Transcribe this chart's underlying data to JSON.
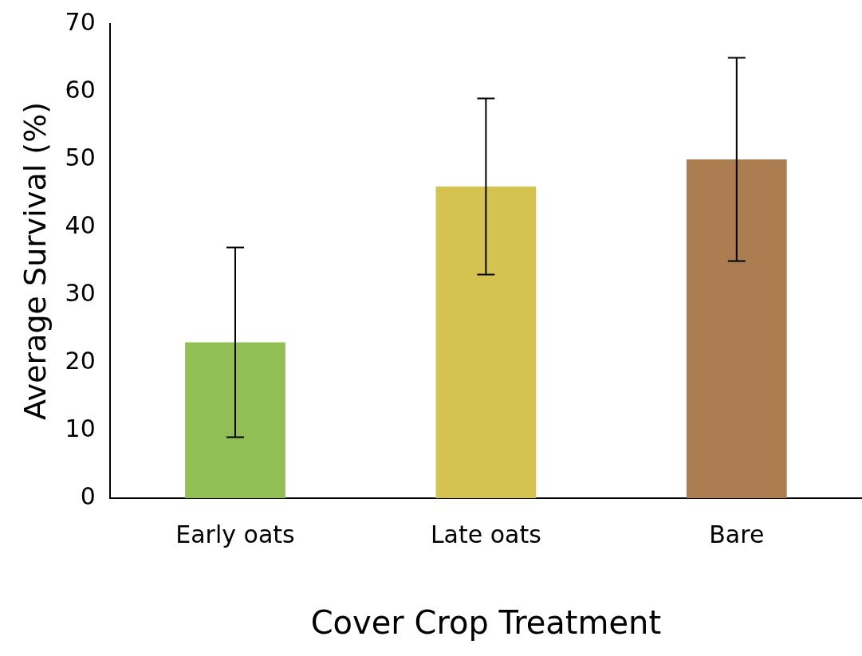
{
  "chart_data": {
    "type": "bar",
    "xlabel": "Cover Crop Treatment",
    "ylabel": "Average Survival (%)",
    "categories": [
      "Early oats",
      "Late oats",
      "Bare"
    ],
    "values": [
      23,
      46,
      50
    ],
    "colors": [
      "#92bf55",
      "#d4c350",
      "#ab7d50"
    ],
    "errors": [
      [
        9,
        37
      ],
      [
        33,
        59
      ],
      [
        35,
        65
      ]
    ],
    "ylim": [
      0,
      70
    ],
    "yticks": [
      0,
      10,
      20,
      30,
      40,
      50,
      60,
      70
    ],
    "grid": false,
    "legend": false
  }
}
